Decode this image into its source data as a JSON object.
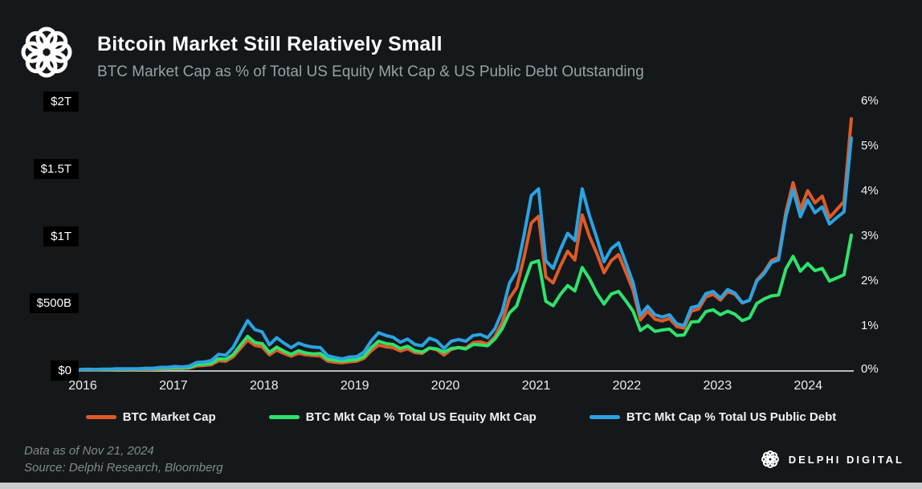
{
  "header": {
    "title": "Bitcoin Market Still Relatively Small",
    "subtitle": "BTC Market Cap as % of Total US Equity Mkt Cap & US Public Debt Outstanding"
  },
  "footer": {
    "line1": "Data as of Nov 21, 2024",
    "line2": "Source: Delphi Research, Bloomberg"
  },
  "brand": {
    "name": "DELPHI DIGITAL"
  },
  "colors": {
    "background": "#15181a",
    "axis_line": "#b9bdc0",
    "tick_box_bg": "#000000",
    "orange": "#e05a26",
    "green": "#2ee36d",
    "blue": "#2ba3e3",
    "bottom_strip": "#caccce"
  },
  "chart_data": {
    "type": "line",
    "title": "Bitcoin Market Still Relatively Small",
    "subtitle": "BTC Market Cap as % of Total US Equity Mkt Cap & US Public Debt Outstanding",
    "grid": false,
    "legend_position": "bottom",
    "x": {
      "unit": "month",
      "start": "2016-01",
      "end": "2024-11",
      "year_labels": [
        "2016",
        "2017",
        "2018",
        "2019",
        "2020",
        "2021",
        "2022",
        "2023",
        "2024"
      ]
    },
    "left_axis": {
      "unit": "USD billions",
      "range": [
        0,
        2000
      ],
      "ticks": [
        {
          "label": "$2T",
          "value": 2000
        },
        {
          "label": "$1.5T",
          "value": 1500
        },
        {
          "label": "$1T",
          "value": 1000
        },
        {
          "label": "$500B",
          "value": 500
        },
        {
          "label": "$0",
          "value": 0
        }
      ]
    },
    "right_axis": {
      "unit": "percent",
      "range": [
        0,
        6
      ],
      "ticks": [
        {
          "label": "6%",
          "value": 6
        },
        {
          "label": "5%",
          "value": 5
        },
        {
          "label": "4%",
          "value": 4
        },
        {
          "label": "3%",
          "value": 3
        },
        {
          "label": "2%",
          "value": 2
        },
        {
          "label": "1%",
          "value": 1
        },
        {
          "label": "0%",
          "value": 0
        }
      ]
    },
    "series": [
      {
        "name": "BTC Market Cap",
        "axis": "left",
        "unit": "$B",
        "color": "#e05a26",
        "values": [
          6,
          7,
          6,
          7,
          8,
          10,
          10,
          9,
          10,
          11,
          12,
          15,
          16,
          19,
          18,
          22,
          37,
          41,
          46,
          75,
          72,
          105,
          168,
          230,
          190,
          180,
          120,
          155,
          130,
          110,
          132,
          120,
          115,
          112,
          73,
          65,
          60,
          68,
          72,
          94,
          150,
          192,
          180,
          172,
          148,
          165,
          137,
          131,
          170,
          158,
          118,
          160,
          175,
          170,
          210,
          216,
          200,
          255,
          360,
          540,
          620,
          845,
          1100,
          1150,
          700,
          655,
          780,
          890,
          825,
          1160,
          1000,
          875,
          730,
          820,
          865,
          735,
          600,
          380,
          445,
          385,
          372,
          390,
          330,
          318,
          445,
          460,
          550,
          570,
          527,
          590,
          570,
          505,
          526,
          675,
          735,
          820,
          845,
          1180,
          1400,
          1200,
          1340,
          1250,
          1300,
          1140,
          1200,
          1260,
          1875
        ]
      },
      {
        "name": "BTC Mkt Cap % Total US Equity Mkt Cap",
        "axis": "right",
        "unit": "%",
        "color": "#2ee36d",
        "values": [
          0.03,
          0.03,
          0.03,
          0.03,
          0.03,
          0.04,
          0.04,
          0.04,
          0.04,
          0.05,
          0.05,
          0.06,
          0.06,
          0.07,
          0.07,
          0.08,
          0.14,
          0.15,
          0.17,
          0.27,
          0.26,
          0.36,
          0.57,
          0.77,
          0.63,
          0.61,
          0.41,
          0.53,
          0.44,
          0.37,
          0.45,
          0.4,
          0.38,
          0.39,
          0.26,
          0.24,
          0.22,
          0.24,
          0.25,
          0.32,
          0.52,
          0.66,
          0.61,
          0.59,
          0.5,
          0.55,
          0.45,
          0.42,
          0.51,
          0.49,
          0.42,
          0.5,
          0.52,
          0.49,
          0.59,
          0.58,
          0.56,
          0.71,
          0.94,
          1.29,
          1.45,
          1.95,
          2.4,
          2.45,
          1.55,
          1.45,
          1.7,
          1.9,
          1.78,
          2.3,
          2.05,
          1.73,
          1.49,
          1.71,
          1.77,
          1.56,
          1.33,
          0.9,
          1.01,
          0.88,
          0.91,
          0.93,
          0.79,
          0.8,
          1.09,
          1.1,
          1.32,
          1.36,
          1.25,
          1.33,
          1.26,
          1.12,
          1.18,
          1.5,
          1.6,
          1.67,
          1.69,
          2.27,
          2.55,
          2.22,
          2.39,
          2.23,
          2.28,
          2.0,
          2.07,
          2.14,
          3.02
        ]
      },
      {
        "name": "BTC Mkt Cap % Total US Public Debt",
        "axis": "right",
        "unit": "%",
        "color": "#2ba3e3",
        "values": [
          0.03,
          0.04,
          0.03,
          0.04,
          0.04,
          0.05,
          0.05,
          0.05,
          0.05,
          0.06,
          0.06,
          0.08,
          0.08,
          0.1,
          0.09,
          0.11,
          0.19,
          0.2,
          0.23,
          0.37,
          0.35,
          0.52,
          0.82,
          1.12,
          0.92,
          0.87,
          0.58,
          0.74,
          0.62,
          0.52,
          0.62,
          0.56,
          0.53,
          0.52,
          0.34,
          0.3,
          0.27,
          0.31,
          0.32,
          0.42,
          0.67,
          0.85,
          0.79,
          0.75,
          0.64,
          0.71,
          0.59,
          0.56,
          0.73,
          0.67,
          0.5,
          0.66,
          0.7,
          0.66,
          0.79,
          0.81,
          0.74,
          0.94,
          1.32,
          1.95,
          2.23,
          3.02,
          3.9,
          4.05,
          2.45,
          2.28,
          2.7,
          3.06,
          2.9,
          4.05,
          3.45,
          2.96,
          2.43,
          2.72,
          2.85,
          2.41,
          1.96,
          1.24,
          1.44,
          1.25,
          1.2,
          1.25,
          1.05,
          1.01,
          1.41,
          1.45,
          1.72,
          1.77,
          1.62,
          1.81,
          1.73,
          1.52,
          1.57,
          2.0,
          2.16,
          2.41,
          2.47,
          3.43,
          4.03,
          3.43,
          3.8,
          3.52,
          3.65,
          3.27,
          3.41,
          3.54,
          5.18
        ]
      }
    ]
  }
}
